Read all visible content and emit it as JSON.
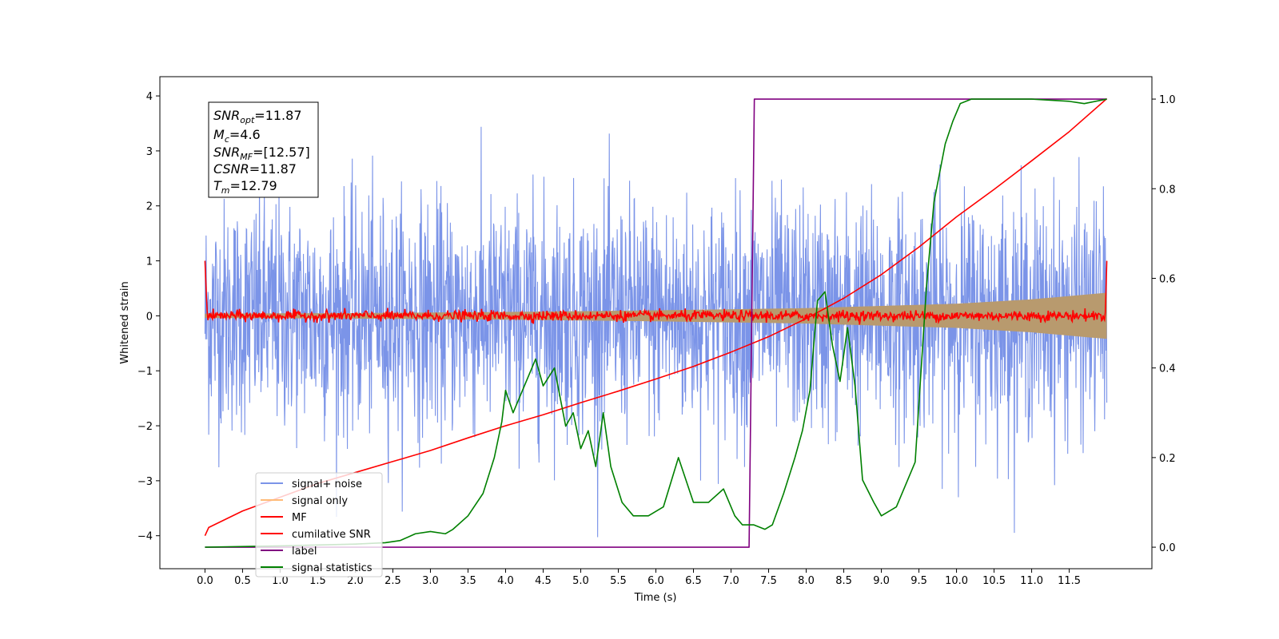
{
  "chart_data": {
    "type": "line",
    "title": "",
    "xlabel": "Time (s)",
    "ylabel": "Whitened strain",
    "y2label": "",
    "xlim": [
      -0.6,
      12.6
    ],
    "ylim": [
      -4.6,
      4.35
    ],
    "y2lim": [
      -0.048,
      1.05
    ],
    "x_ticks": [
      0.0,
      0.5,
      1.0,
      1.5,
      2.0,
      2.5,
      3.0,
      3.5,
      4.0,
      4.5,
      5.0,
      5.5,
      6.0,
      6.5,
      7.0,
      7.5,
      8.0,
      8.5,
      9.0,
      9.5,
      10.0,
      10.5,
      11.0,
      11.5
    ],
    "x_tick_labels": [
      "0.0",
      "0.5",
      "1.0",
      "1.5",
      "2.0",
      "2.5",
      "3.0",
      "3.5",
      "4.0",
      "4.5",
      "5.0",
      "5.5",
      "6.0",
      "6.5",
      "7.0",
      "7.5",
      "8.0",
      "8.5",
      "9.0",
      "9.5",
      "10.0",
      "10.5",
      "11.0",
      "11.5"
    ],
    "y_ticks": [
      -4,
      -3,
      -2,
      -1,
      0,
      1,
      2,
      3,
      4
    ],
    "y_tick_labels": [
      "−4",
      "−3",
      "−2",
      "−1",
      "0",
      "1",
      "2",
      "3",
      "4"
    ],
    "y2_ticks": [
      0.0,
      0.2,
      0.4,
      0.6,
      0.8,
      1.0
    ],
    "y2_tick_labels": [
      "0.0",
      "0.2",
      "0.4",
      "0.6",
      "0.8",
      "1.0"
    ],
    "grid": false,
    "legend_position": "lower-left",
    "annotation": {
      "snr_opt": {
        "name": "SNR",
        "sub": "opt",
        "value": "=11.87"
      },
      "mc": {
        "name": "M",
        "sub": "c",
        "value": "=4.6"
      },
      "snr_mf": {
        "name": "SNR",
        "sub": "MF",
        "value": "=[12.57]"
      },
      "csnr": {
        "name": "CSNR",
        "sub": "",
        "value": "=11.87"
      },
      "tm": {
        "name": "T",
        "sub": "m",
        "value": "=12.79"
      }
    },
    "series": [
      {
        "name": "signal+ noise",
        "axis": "left",
        "color": "#7b94e8",
        "kind": "noise",
        "x_range": [
          0.0,
          12.0
        ],
        "typical_abs_max": 2.6,
        "peak_max": 3.8,
        "peak_min": -4.15
      },
      {
        "name": "signal only",
        "axis": "left",
        "color": "#ffbb78",
        "kind": "envelope",
        "x": [
          0.0,
          2.0,
          4.0,
          6.0,
          8.0,
          10.0,
          11.0,
          12.0
        ],
        "amplitude": [
          0.04,
          0.05,
          0.07,
          0.1,
          0.14,
          0.22,
          0.3,
          0.42
        ]
      },
      {
        "name": "MF",
        "axis": "left",
        "color": "#ff0000",
        "kind": "mf",
        "x_range": [
          0.0,
          12.0
        ],
        "start_value": 1.0,
        "end_value": 1.0,
        "noise_amplitude": 0.08
      },
      {
        "name": "cumilative SNR",
        "axis": "left",
        "color": "#ff0000",
        "kind": "line",
        "x": [
          0.0,
          0.05,
          0.5,
          1.0,
          1.5,
          2.0,
          2.5,
          3.0,
          3.5,
          4.0,
          4.5,
          5.0,
          5.5,
          6.0,
          6.5,
          7.0,
          7.5,
          8.0,
          8.5,
          9.0,
          9.5,
          10.0,
          10.5,
          11.0,
          11.5,
          12.0
        ],
        "y": [
          -4.0,
          -3.85,
          -3.55,
          -3.3,
          -3.05,
          -2.85,
          -2.65,
          -2.45,
          -2.22,
          -2.0,
          -1.8,
          -1.58,
          -1.37,
          -1.15,
          -0.92,
          -0.66,
          -0.38,
          -0.05,
          0.32,
          0.75,
          1.25,
          1.8,
          2.3,
          2.82,
          3.35,
          3.95
        ]
      },
      {
        "name": "label",
        "axis": "right",
        "color": "#800080",
        "kind": "line",
        "x": [
          0.0,
          7.24,
          7.31,
          12.0
        ],
        "y": [
          0.0,
          0.0,
          1.0,
          1.0
        ]
      },
      {
        "name": "signal statistics",
        "axis": "right",
        "color": "#008000",
        "kind": "line",
        "x": [
          0.0,
          1.0,
          2.0,
          2.4,
          2.6,
          2.8,
          3.0,
          3.2,
          3.3,
          3.5,
          3.7,
          3.85,
          3.95,
          4.0,
          4.1,
          4.3,
          4.4,
          4.5,
          4.65,
          4.8,
          4.9,
          5.0,
          5.1,
          5.2,
          5.3,
          5.4,
          5.55,
          5.7,
          5.9,
          6.1,
          6.3,
          6.5,
          6.7,
          6.9,
          7.05,
          7.15,
          7.3,
          7.45,
          7.55,
          7.7,
          7.85,
          7.95,
          8.05,
          8.15,
          8.25,
          8.35,
          8.45,
          8.55,
          8.65,
          8.75,
          8.9,
          9.0,
          9.2,
          9.3,
          9.45,
          9.6,
          9.7,
          9.85,
          9.95,
          10.05,
          10.2,
          10.5,
          11.0,
          11.5,
          11.7,
          12.0
        ],
        "y": [
          0.0,
          0.003,
          0.007,
          0.01,
          0.015,
          0.03,
          0.035,
          0.03,
          0.04,
          0.07,
          0.12,
          0.2,
          0.28,
          0.35,
          0.3,
          0.38,
          0.42,
          0.36,
          0.4,
          0.27,
          0.3,
          0.22,
          0.26,
          0.18,
          0.3,
          0.18,
          0.1,
          0.07,
          0.07,
          0.09,
          0.2,
          0.1,
          0.1,
          0.13,
          0.07,
          0.05,
          0.05,
          0.04,
          0.05,
          0.12,
          0.2,
          0.26,
          0.35,
          0.55,
          0.57,
          0.45,
          0.37,
          0.49,
          0.36,
          0.15,
          0.1,
          0.07,
          0.09,
          0.13,
          0.19,
          0.58,
          0.77,
          0.9,
          0.95,
          0.99,
          1.0,
          1.0,
          1.0,
          0.995,
          0.99,
          1.0
        ]
      }
    ]
  }
}
